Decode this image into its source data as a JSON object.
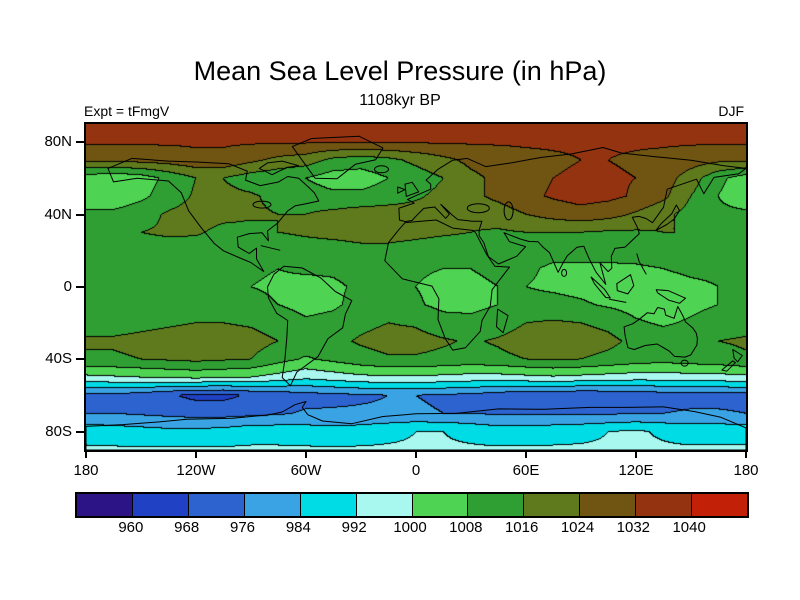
{
  "chart_data": {
    "type": "heatmap",
    "title": "Mean Sea Level Pressure (in hPa)",
    "subtitle": "1108kyr BP",
    "experiment_label": "Expt = tFmgV",
    "season_label": "DJF",
    "units": "hPa",
    "projection": "equirectangular",
    "lat_range": [
      -90,
      90
    ],
    "lon_range": [
      -180,
      180
    ],
    "grid_on": false,
    "legend_position": "bottom-colorbar",
    "levels": [
      960,
      968,
      976,
      984,
      992,
      1000,
      1008,
      1016,
      1024,
      1032,
      1040
    ],
    "colors": [
      "#2d1486",
      "#2141c4",
      "#2c63cf",
      "#3aa3e3",
      "#00dce6",
      "#a8f8f0",
      "#4fd353",
      "#2f9e33",
      "#5f7a1c",
      "#6f5412",
      "#93330f",
      "#c22007"
    ],
    "colorbar_labels": [
      "960",
      "968",
      "976",
      "984",
      "992",
      "1000",
      "1008",
      "1016",
      "1024",
      "1032",
      "1040"
    ],
    "lat_ticks": [
      {
        "value": 80,
        "label": "80N"
      },
      {
        "value": 40,
        "label": "40N"
      },
      {
        "value": 0,
        "label": "0"
      },
      {
        "value": -40,
        "label": "40S"
      },
      {
        "value": -80,
        "label": "80S"
      }
    ],
    "lon_ticks": [
      {
        "value": -180,
        "label": "180"
      },
      {
        "value": -120,
        "label": "120W"
      },
      {
        "value": -60,
        "label": "60W"
      },
      {
        "value": 0,
        "label": "0"
      },
      {
        "value": 60,
        "label": "60E"
      },
      {
        "value": 120,
        "label": "120E"
      },
      {
        "value": 180,
        "label": "180"
      }
    ],
    "grid_lats": [
      90,
      80,
      70,
      60,
      50,
      40,
      30,
      20,
      10,
      0,
      -10,
      -20,
      -30,
      -40,
      -50,
      -60,
      -70,
      -80,
      -90
    ],
    "grid_lons": [
      -180,
      -165,
      -150,
      -135,
      -120,
      -105,
      -90,
      -75,
      -60,
      -45,
      -30,
      -15,
      0,
      15,
      30,
      45,
      60,
      75,
      90,
      105,
      120,
      135,
      150,
      165,
      180
    ],
    "grid_values_hpa": [
      [
        1035,
        1035,
        1035,
        1035,
        1035,
        1035,
        1035,
        1035,
        1035,
        1035,
        1035,
        1035,
        1035,
        1035,
        1035,
        1035,
        1035,
        1035,
        1035,
        1035,
        1035,
        1035,
        1035,
        1035,
        1035
      ],
      [
        1033,
        1033,
        1033,
        1033,
        1033,
        1033,
        1033,
        1033,
        1033,
        1033,
        1033,
        1033,
        1033,
        1033,
        1033,
        1033,
        1033,
        1033,
        1033,
        1033,
        1033,
        1033,
        1033,
        1033,
        1033
      ],
      [
        1026,
        1026,
        1027,
        1028,
        1030,
        1030,
        1026,
        1022,
        1020,
        1014,
        1012,
        1014,
        1018,
        1022,
        1026,
        1028,
        1030,
        1031,
        1032,
        1032,
        1031,
        1030,
        1028,
        1026,
        1026
      ],
      [
        1004,
        1002,
        1004,
        1010,
        1016,
        1016,
        1012,
        1010,
        1008,
        1004,
        1004,
        1008,
        1012,
        1016,
        1022,
        1026,
        1029,
        1032,
        1033,
        1033,
        1032,
        1028,
        1020,
        1010,
        1004
      ],
      [
        1002,
        1002,
        1006,
        1012,
        1017,
        1018,
        1017,
        1014,
        1012,
        1010,
        1010,
        1012,
        1015,
        1018,
        1022,
        1026,
        1030,
        1033,
        1035,
        1034,
        1031,
        1026,
        1016,
        1008,
        1002
      ],
      [
        1010,
        1010,
        1013,
        1017,
        1019,
        1018,
        1017,
        1016,
        1016,
        1018,
        1020,
        1020,
        1019,
        1018,
        1018,
        1020,
        1024,
        1027,
        1029,
        1027,
        1023,
        1018,
        1013,
        1010,
        1010
      ],
      [
        1015,
        1015,
        1016,
        1017,
        1017,
        1014,
        1014,
        1016,
        1017,
        1018,
        1019,
        1019,
        1018,
        1017,
        1016,
        1015,
        1016,
        1016,
        1016,
        1015,
        1015,
        1016,
        1016,
        1016,
        1015
      ],
      [
        1012,
        1012,
        1013,
        1013,
        1012,
        1010,
        1011,
        1012,
        1013,
        1013,
        1014,
        1014,
        1013,
        1012,
        1012,
        1011,
        1011,
        1010,
        1010,
        1010,
        1011,
        1012,
        1012,
        1012,
        1012
      ],
      [
        1009,
        1009,
        1009,
        1009,
        1009,
        1008,
        1009,
        1008,
        1009,
        1009,
        1010,
        1010,
        1009,
        1008,
        1008,
        1009,
        1009,
        1007,
        1007,
        1007,
        1007,
        1008,
        1009,
        1009,
        1009
      ],
      [
        1009,
        1009,
        1009,
        1009,
        1009,
        1008,
        1008,
        1007,
        1006,
        1007,
        1009,
        1009,
        1008,
        1006,
        1007,
        1008,
        1008,
        1007,
        1006,
        1005,
        1005,
        1006,
        1007,
        1008,
        1009
      ],
      [
        1010,
        1010,
        1010,
        1011,
        1011,
        1011,
        1010,
        1008,
        1006,
        1007,
        1010,
        1010,
        1009,
        1006,
        1006,
        1008,
        1010,
        1010,
        1009,
        1007,
        1005,
        1004,
        1006,
        1008,
        1010
      ],
      [
        1013,
        1013,
        1014,
        1015,
        1016,
        1016,
        1015,
        1012,
        1009,
        1010,
        1014,
        1016,
        1015,
        1011,
        1010,
        1012,
        1016,
        1017,
        1016,
        1014,
        1009,
        1007,
        1009,
        1012,
        1013
      ],
      [
        1017,
        1017,
        1018,
        1019,
        1020,
        1020,
        1019,
        1016,
        1013,
        1014,
        1017,
        1019,
        1019,
        1017,
        1015,
        1017,
        1020,
        1021,
        1020,
        1018,
        1014,
        1012,
        1013,
        1016,
        1017
      ],
      [
        1015,
        1015,
        1016,
        1017,
        1018,
        1017,
        1016,
        1011,
        1007,
        1010,
        1013,
        1015,
        1015,
        1014,
        1013,
        1014,
        1016,
        1017,
        1016,
        1014,
        1012,
        1011,
        1012,
        1013,
        1015
      ],
      [
        998,
        999,
        1000,
        1001,
        1002,
        1001,
        1000,
        997,
        994,
        996,
        998,
        999,
        999,
        998,
        997,
        997,
        998,
        999,
        998,
        997,
        996,
        996,
        997,
        997,
        998
      ],
      [
        973,
        974,
        972,
        969,
        966,
        966,
        969,
        971,
        973,
        974,
        975,
        976,
        976,
        975,
        974,
        972,
        970,
        971,
        969,
        970,
        971,
        972,
        973,
        973,
        973
      ],
      [
        976,
        976,
        975,
        974,
        973,
        973,
        974,
        975,
        977,
        977,
        977,
        977,
        977,
        976,
        976,
        975,
        975,
        975,
        975,
        975,
        976,
        976,
        977,
        977,
        976
      ],
      [
        989,
        988,
        987,
        986,
        986,
        987,
        989,
        989,
        988,
        987,
        988,
        990,
        992,
        992,
        990,
        988,
        988,
        989,
        990,
        992,
        993,
        991,
        989,
        989,
        989
      ],
      [
        993,
        993,
        993,
        993,
        993,
        993,
        993,
        993,
        993,
        993,
        993,
        993,
        993,
        993,
        993,
        993,
        993,
        993,
        993,
        993,
        993,
        993,
        993,
        993,
        993
      ]
    ]
  }
}
